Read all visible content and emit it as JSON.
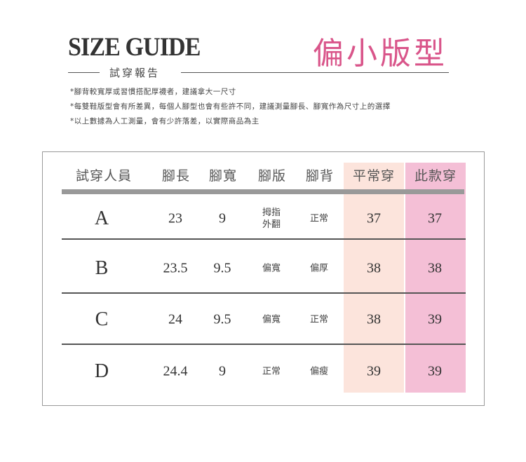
{
  "header": {
    "title": "SIZE GUIDE",
    "subtitle": "試穿報告",
    "fit": "偏小版型"
  },
  "notes": [
    "*腳背較寬厚或習慣搭配厚襪者，建議拿大一尺寸",
    "*每雙鞋版型會有所差異，每個人腳型也會有些許不同，建議測量腳長、腳寬作為尺寸上的選擇",
    "*以上數據為人工測量，會有少許落差，以實際商品為主"
  ],
  "table": {
    "headers": [
      "試穿人員",
      "腳長",
      "腳寬",
      "腳版",
      "腳背",
      "平常穿",
      "此款穿"
    ],
    "colors": {
      "usual": "#fce4dc",
      "this": "#f4bfd6",
      "accent": "#d9558a"
    },
    "rows": [
      {
        "name": "A",
        "length": "23",
        "width": "9",
        "shape": "拇指\n外翻",
        "instep": "正常",
        "usual": "37",
        "this": "37"
      },
      {
        "name": "B",
        "length": "23.5",
        "width": "9.5",
        "shape": "偏寬",
        "instep": "偏厚",
        "usual": "38",
        "this": "38"
      },
      {
        "name": "C",
        "length": "24",
        "width": "9.5",
        "shape": "偏寬",
        "instep": "正常",
        "usual": "38",
        "this": "39"
      },
      {
        "name": "D",
        "length": "24.4",
        "width": "9",
        "shape": "正常",
        "instep": "偏瘦",
        "usual": "39",
        "this": "39"
      }
    ]
  }
}
